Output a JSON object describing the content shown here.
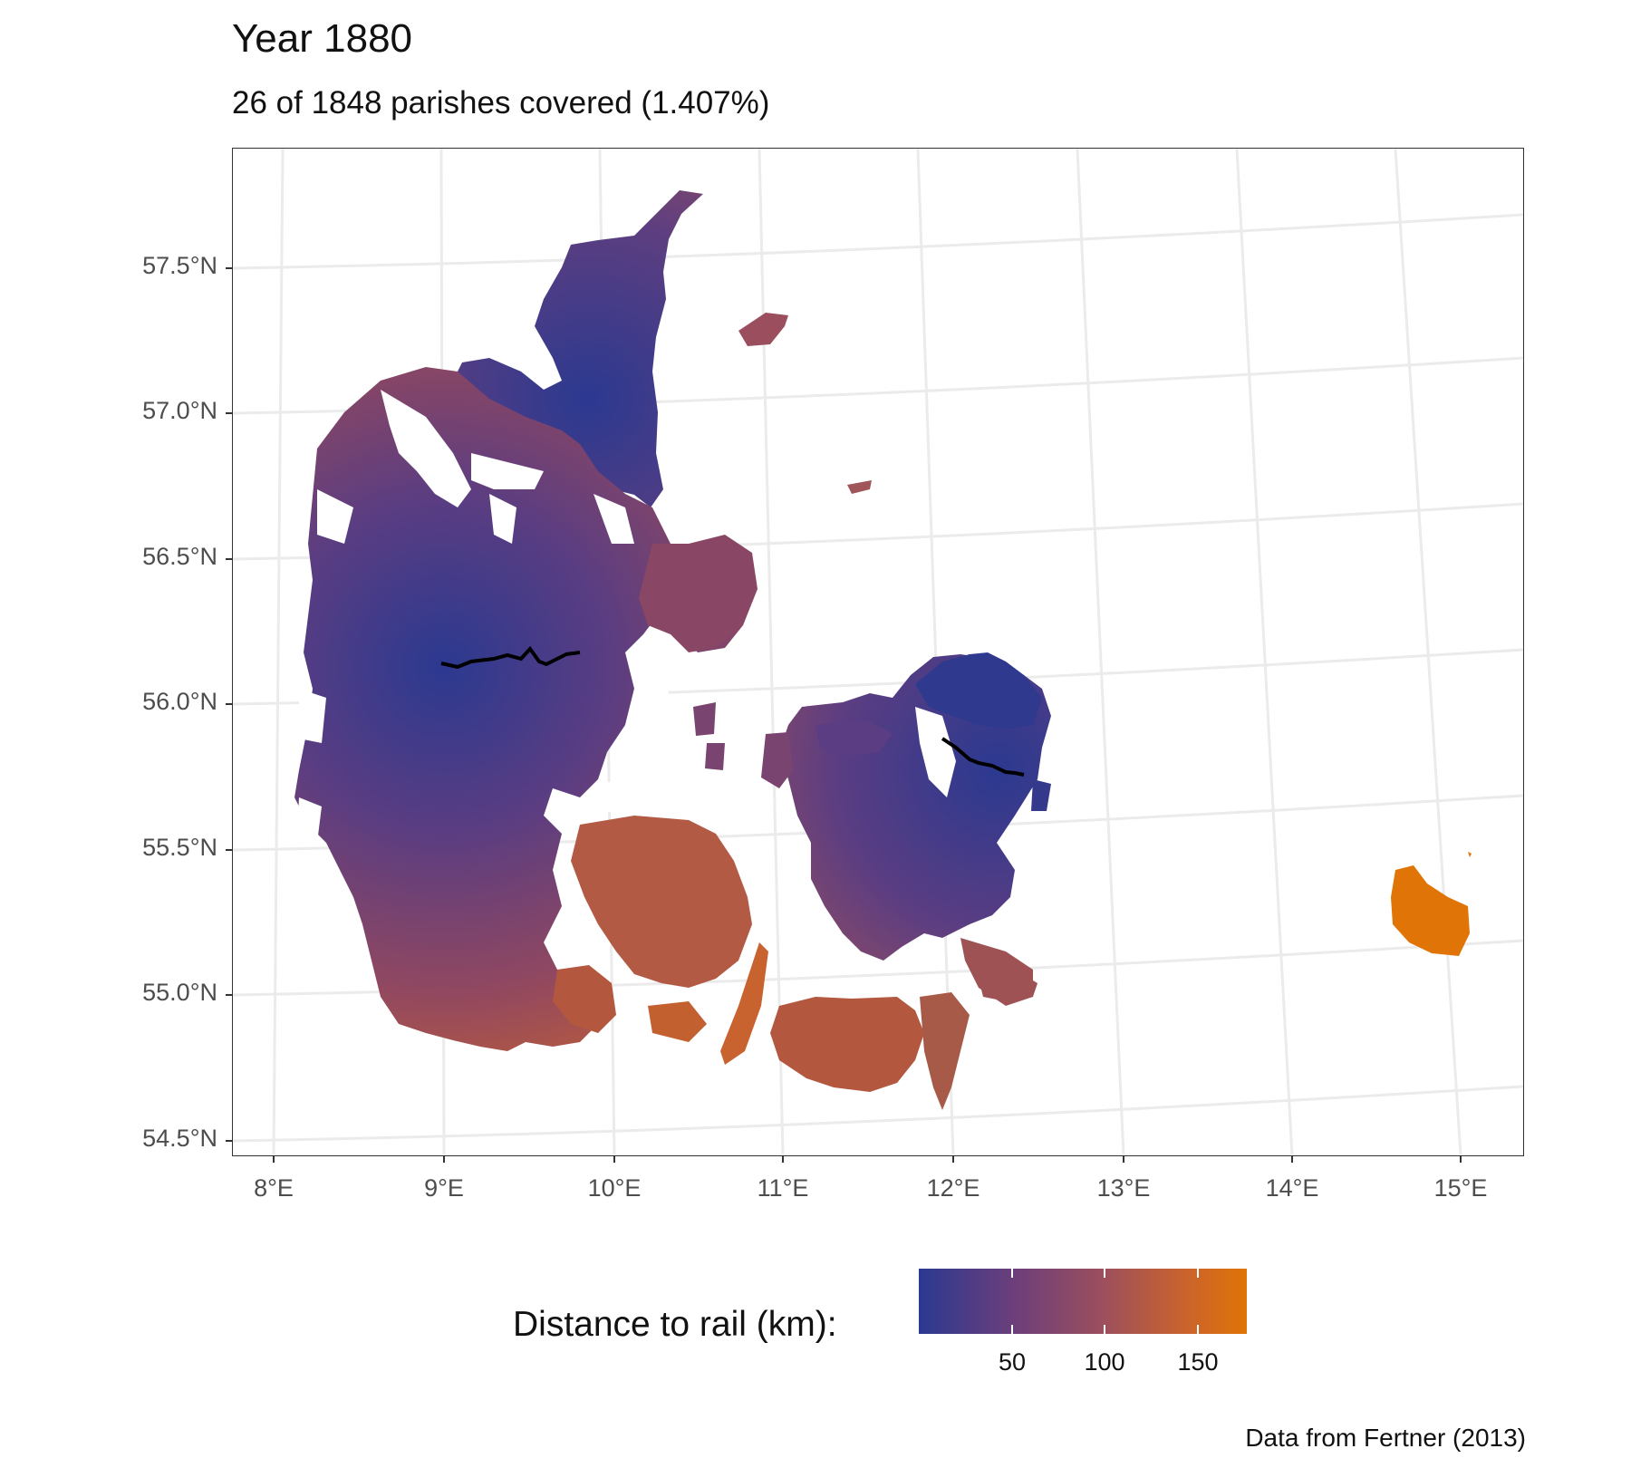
{
  "title": "Year 1880",
  "subtitle": "26 of 1848 parishes covered (1.407%)",
  "caption": "Data from Fertner (2013)",
  "axes": {
    "lat_labels": [
      "57.5°N",
      "57.0°N",
      "56.5°N",
      "56.0°N",
      "55.5°N",
      "55.0°N",
      "54.5°N"
    ],
    "lon_labels": [
      "8°E",
      "9°E",
      "10°E",
      "11°E",
      "12°E",
      "13°E",
      "14°E",
      "15°E"
    ]
  },
  "legend": {
    "title": "Distance to rail (km):",
    "ticks": [
      "50",
      "100",
      "150"
    ],
    "colors": {
      "low": "#2b3990",
      "mid": "#9a4e5e",
      "high": "#e07406"
    }
  },
  "map": {
    "region": "Denmark",
    "rail_lines": [
      "Jutland line",
      "Zealand line"
    ],
    "gridline_color": "#ebebeb"
  }
}
